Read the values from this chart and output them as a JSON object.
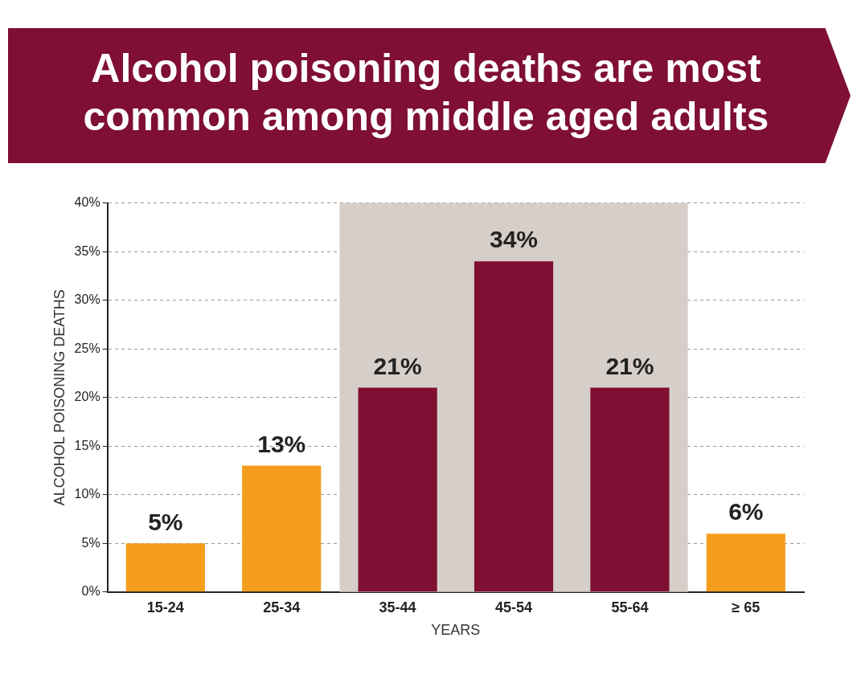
{
  "chart_data": {
    "type": "bar",
    "title": "Alcohol poisoning deaths are most common among middle aged adults",
    "xlabel": "YEARS",
    "ylabel": "ALCOHOL POISONING DEATHS",
    "categories": [
      "15-24",
      "25-34",
      "35-44",
      "45-54",
      "55-64",
      "≥ 65"
    ],
    "values": [
      5,
      13,
      21,
      34,
      21,
      6
    ],
    "colors": [
      "#f59d1c",
      "#f59d1c",
      "#7f0f33",
      "#7f0f33",
      "#7f0f33",
      "#f59d1c"
    ],
    "value_labels": [
      "5%",
      "13%",
      "21%",
      "34%",
      "21%",
      "6%"
    ],
    "ylim": [
      0,
      40
    ],
    "yticks": [
      {
        "value": 0,
        "label": "0%"
      },
      {
        "value": 5,
        "label": "5%"
      },
      {
        "value": 10,
        "label": "10%"
      },
      {
        "value": 15,
        "label": "15%"
      },
      {
        "value": 20,
        "label": "20%"
      },
      {
        "value": 25,
        "label": "25%"
      },
      {
        "value": 30,
        "label": "30%"
      },
      {
        "value": 35,
        "label": "35%"
      },
      {
        "value": 40,
        "label": "40%"
      }
    ],
    "bands": [
      {
        "axis": "x",
        "from": "35-44",
        "to": "55-64",
        "color": "#d6cec8"
      }
    ],
    "grid": "y",
    "legend": false
  }
}
